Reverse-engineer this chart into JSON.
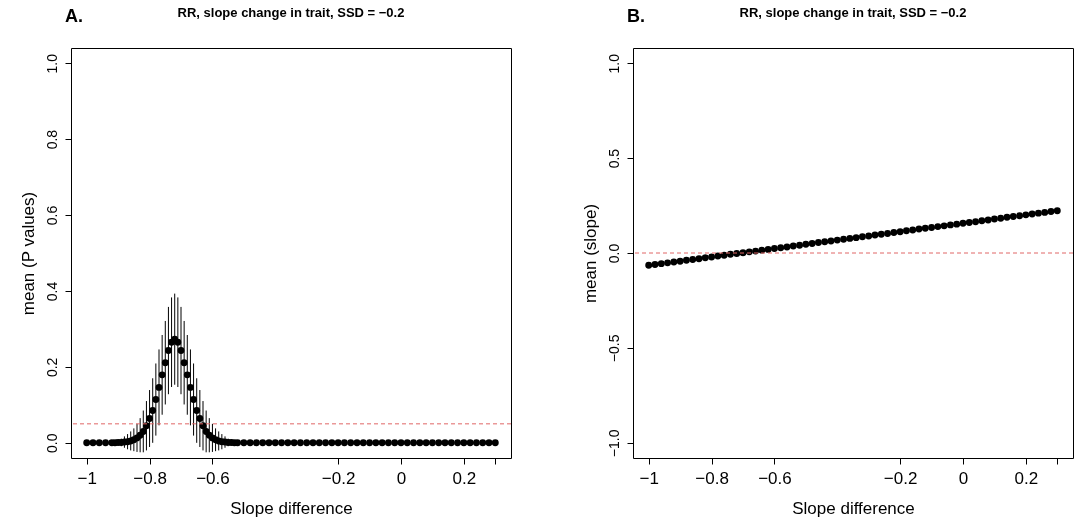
{
  "chart_data": [
    {
      "type": "scatter",
      "title": "RR, slope change in trait, SSD = −0.2",
      "xlabel": "Slope difference",
      "ylabel": "mean (P values)",
      "annotations": [
        "A."
      ],
      "color": "#000000",
      "marker": "circle",
      "grid": false,
      "xlim": [
        -1.05,
        0.35
      ],
      "ylim": [
        -0.04,
        1.04
      ],
      "xticks": [
        {
          "value": -1,
          "label": "−1"
        },
        {
          "value": -0.8,
          "label": "−0.8"
        },
        {
          "value": -0.6,
          "label": "−0.6"
        },
        {
          "value": -0.2,
          "label": "−0.2"
        },
        {
          "value": 0,
          "label": "0"
        },
        {
          "value": 0.2,
          "label": "0.2"
        },
        {
          "value": 0.3,
          "label": null
        }
      ],
      "yticks": [
        {
          "value": 0,
          "label": "0.0"
        },
        {
          "value": 0.2,
          "label": "0.2"
        },
        {
          "value": 0.4,
          "label": "0.4"
        },
        {
          "value": 0.6,
          "label": "0.6"
        },
        {
          "value": 0.8,
          "label": "0.8"
        },
        {
          "value": 1,
          "label": "1.0"
        }
      ],
      "x": [
        -1,
        -0.98,
        -0.96,
        -0.94,
        -0.92,
        -0.91,
        -0.9,
        -0.89,
        -0.88,
        -0.87,
        -0.86,
        -0.85,
        -0.84,
        -0.83,
        -0.82,
        -0.81,
        -0.8,
        -0.79,
        -0.78,
        -0.77,
        -0.76,
        -0.75,
        -0.74,
        -0.73,
        -0.72,
        -0.71,
        -0.7,
        -0.69,
        -0.68,
        -0.67,
        -0.66,
        -0.65,
        -0.64,
        -0.63,
        -0.62,
        -0.61,
        -0.6,
        -0.59,
        -0.58,
        -0.57,
        -0.56,
        -0.55,
        -0.54,
        -0.53,
        -0.52,
        -0.5,
        -0.48,
        -0.46,
        -0.44,
        -0.42,
        -0.4,
        -0.38,
        -0.36,
        -0.34,
        -0.32,
        -0.3,
        -0.28,
        -0.26,
        -0.24,
        -0.22,
        -0.2,
        -0.18,
        -0.16,
        -0.14,
        -0.12,
        -0.1,
        -0.08,
        -0.06,
        -0.04,
        -0.02,
        0,
        0.02,
        0.04,
        0.06,
        0.08,
        0.1,
        0.12,
        0.14,
        0.16,
        0.18,
        0.2,
        0.22,
        0.24,
        0.26,
        0.28,
        0.3
      ],
      "values": [
        0,
        0,
        0,
        0,
        0,
        0,
        0.001,
        0.001,
        0.002,
        0.003,
        0.005,
        0.008,
        0.013,
        0.02,
        0.03,
        0.045,
        0.064,
        0.085,
        0.114,
        0.146,
        0.179,
        0.211,
        0.243,
        0.265,
        0.273,
        0.265,
        0.243,
        0.211,
        0.179,
        0.146,
        0.114,
        0.085,
        0.064,
        0.045,
        0.03,
        0.02,
        0.013,
        0.008,
        0.005,
        0.003,
        0.002,
        0.001,
        0.001,
        0,
        0,
        0,
        0,
        0,
        0,
        0,
        0,
        0,
        0,
        0,
        0,
        0,
        0,
        0,
        0,
        0,
        0,
        0,
        0,
        0,
        0,
        0,
        0,
        0,
        0,
        0,
        0,
        0,
        0,
        0,
        0,
        0,
        0,
        0,
        0,
        0,
        0,
        0,
        0,
        0,
        0,
        0
      ],
      "errors": [
        null,
        null,
        null,
        null,
        null,
        0.004,
        0.006,
        0.01,
        0.015,
        0.02,
        0.025,
        0.03,
        0.037,
        0.045,
        0.055,
        0.065,
        0.075,
        0.085,
        0.095,
        0.1,
        0.105,
        0.11,
        0.115,
        0.118,
        0.12,
        0.118,
        0.115,
        0.11,
        0.105,
        0.1,
        0.095,
        0.085,
        0.075,
        0.065,
        0.055,
        0.045,
        0.037,
        0.03,
        0.025,
        0.02,
        0.015,
        0.01,
        0.006,
        0.004,
        null,
        null,
        null,
        null,
        null,
        null,
        null,
        null,
        null,
        null,
        null,
        null,
        null,
        null,
        null,
        null,
        null,
        null,
        null,
        null,
        null,
        null,
        null,
        null,
        null,
        null,
        null,
        null,
        null,
        null,
        null,
        null,
        null,
        null,
        null,
        null,
        null,
        null,
        null,
        null,
        null,
        null
      ],
      "ref_lines": [
        {
          "axis": "y",
          "value": 0.05,
          "color": "#e06666",
          "line_style": "dashed"
        }
      ]
    },
    {
      "type": "scatter",
      "title": "RR, slope change in trait, SSD = −0.2",
      "xlabel": "Slope difference",
      "ylabel": "mean (slope)",
      "annotations": [
        "B."
      ],
      "color": "#000000",
      "marker": "circle",
      "grid": false,
      "xlim": [
        -1.05,
        0.35
      ],
      "ylim": [
        -1.08,
        1.08
      ],
      "xticks": [
        {
          "value": -1,
          "label": "−1"
        },
        {
          "value": -0.8,
          "label": "−0.8"
        },
        {
          "value": -0.6,
          "label": "−0.6"
        },
        {
          "value": -0.2,
          "label": "−0.2"
        },
        {
          "value": 0,
          "label": "0"
        },
        {
          "value": 0.2,
          "label": "0.2"
        },
        {
          "value": 0.3,
          "label": null
        }
      ],
      "yticks": [
        {
          "value": -1,
          "label": "−1.0"
        },
        {
          "value": -0.5,
          "label": "−0.5"
        },
        {
          "value": 0,
          "label": "0.0"
        },
        {
          "value": 0.5,
          "label": "0.5"
        },
        {
          "value": 1,
          "label": "1.0"
        }
      ],
      "x": [
        -1,
        -0.98,
        -0.96,
        -0.94,
        -0.92,
        -0.9,
        -0.88,
        -0.86,
        -0.84,
        -0.82,
        -0.8,
        -0.78,
        -0.76,
        -0.74,
        -0.72,
        -0.7,
        -0.68,
        -0.66,
        -0.64,
        -0.62,
        -0.6,
        -0.58,
        -0.56,
        -0.54,
        -0.52,
        -0.5,
        -0.48,
        -0.46,
        -0.44,
        -0.42,
        -0.4,
        -0.38,
        -0.36,
        -0.34,
        -0.32,
        -0.3,
        -0.28,
        -0.26,
        -0.24,
        -0.22,
        -0.2,
        -0.18,
        -0.16,
        -0.14,
        -0.12,
        -0.1,
        -0.08,
        -0.06,
        -0.04,
        -0.02,
        0,
        0.02,
        0.04,
        0.06,
        0.08,
        0.1,
        0.12,
        0.14,
        0.16,
        0.18,
        0.2,
        0.22,
        0.24,
        0.26,
        0.28,
        0.3
      ],
      "values": [
        -0.065,
        -0.061,
        -0.056,
        -0.052,
        -0.047,
        -0.043,
        -0.038,
        -0.034,
        -0.03,
        -0.025,
        -0.021,
        -0.016,
        -0.012,
        -0.007,
        -0.003,
        0.001,
        0.006,
        0.01,
        0.015,
        0.019,
        0.024,
        0.028,
        0.032,
        0.037,
        0.041,
        0.046,
        0.05,
        0.055,
        0.059,
        0.063,
        0.068,
        0.072,
        0.077,
        0.081,
        0.086,
        0.09,
        0.095,
        0.099,
        0.103,
        0.108,
        0.112,
        0.117,
        0.121,
        0.126,
        0.13,
        0.134,
        0.139,
        0.143,
        0.148,
        0.152,
        0.157,
        0.161,
        0.165,
        0.17,
        0.174,
        0.179,
        0.183,
        0.188,
        0.192,
        0.196,
        0.201,
        0.205,
        0.21,
        0.214,
        0.219,
        0.223
      ],
      "ref_lines": [
        {
          "axis": "y",
          "value": 0,
          "color": "#e06666",
          "line_style": "dashed"
        }
      ]
    }
  ]
}
